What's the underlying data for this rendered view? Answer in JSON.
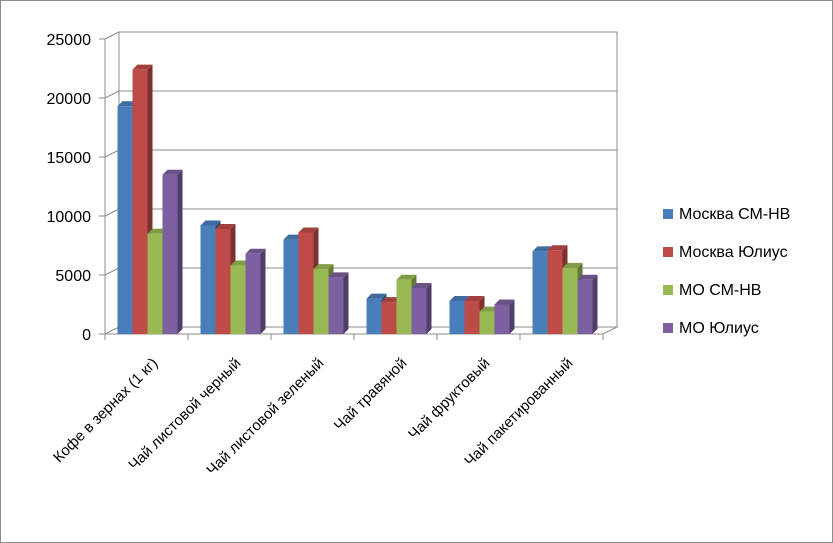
{
  "chart_data": {
    "type": "bar",
    "categories": [
      "Кофе в зернах (1 кг)",
      "Чай листовой черный",
      "Чай листовой зеленый",
      "Чай  травяной",
      "Чай фруктовый",
      "Чай пакетированный"
    ],
    "series": [
      {
        "name": "Москва СМ-НВ",
        "color": "#4a7ebb",
        "values": [
          19300,
          9200,
          8000,
          3000,
          2800,
          7000
        ]
      },
      {
        "name": "Москва Юлиус",
        "color": "#be4b48",
        "values": [
          22400,
          8900,
          8600,
          2700,
          2800,
          7100
        ]
      },
      {
        "name": "МО СМ-НВ",
        "color": "#98b954",
        "values": [
          8500,
          5800,
          5500,
          4600,
          1900,
          5600
        ]
      },
      {
        "name": "МО Юлиус",
        "color": "#7d60a0",
        "values": [
          13500,
          6800,
          4800,
          3900,
          2500,
          4600
        ]
      }
    ],
    "yticks": [
      "0",
      "5000",
      "10000",
      "15000",
      "20000",
      "25000"
    ],
    "ylim": [
      0,
      25000
    ],
    "grid": true,
    "legend": "right",
    "title": "",
    "xlabel": "",
    "ylabel": ""
  }
}
